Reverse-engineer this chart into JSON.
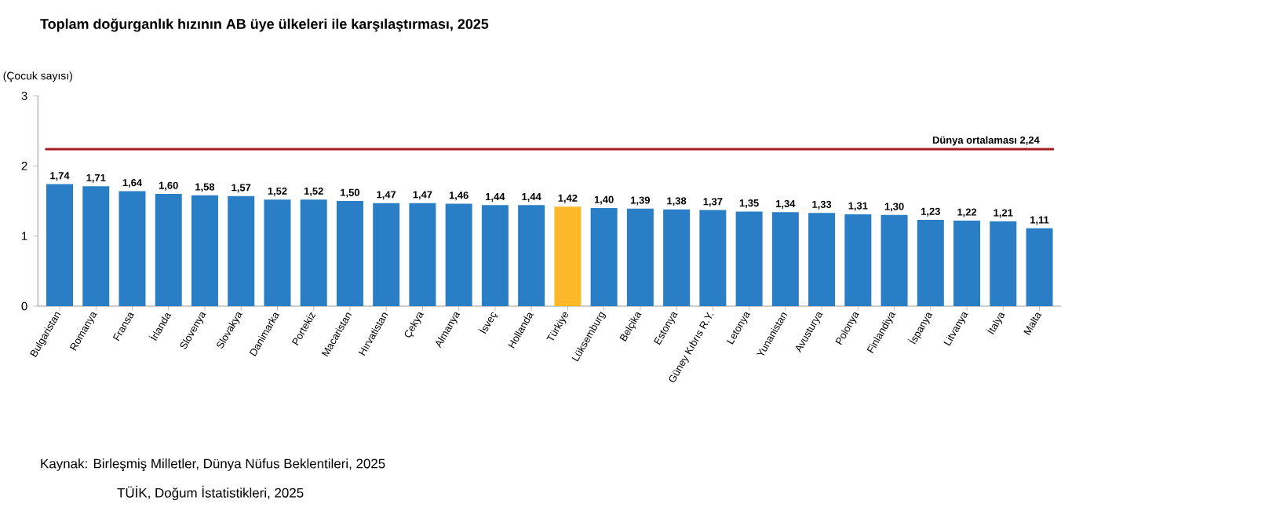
{
  "chart_data": {
    "type": "bar",
    "title": "Toplam doğurganlık hızının AB üye ülkeleri ile karşılaştırması, 2025",
    "ylabel": "(Çocuk sayısı)",
    "categories": [
      "Bulgaristan",
      "Romanya",
      "Fransa",
      "İrlanda",
      "Slovenya",
      "Slovakya",
      "Danimarka",
      "Portekiz",
      "Macaristan",
      "Hırvatistan",
      "Çekya",
      "Almanya",
      "İsveç",
      "Hollanda",
      "Türkiye",
      "Lüksemburg",
      "Belçika",
      "Estonya",
      "Güney Kıbrıs R.Y.",
      "Letonya",
      "Yunanistan",
      "Avusturya",
      "Polonya",
      "Finlandiya",
      "İspanya",
      "Litvanya",
      "İtalya",
      "Malta"
    ],
    "values": [
      1.74,
      1.71,
      1.64,
      1.6,
      1.58,
      1.57,
      1.52,
      1.52,
      1.5,
      1.47,
      1.47,
      1.46,
      1.44,
      1.44,
      1.42,
      1.4,
      1.39,
      1.38,
      1.37,
      1.35,
      1.34,
      1.33,
      1.31,
      1.3,
      1.23,
      1.22,
      1.21,
      1.11
    ],
    "value_labels": [
      "1,74",
      "1,71",
      "1,64",
      "1,60",
      "1,58",
      "1,57",
      "1,52",
      "1,52",
      "1,50",
      "1,47",
      "1,47",
      "1,46",
      "1,44",
      "1,44",
      "1,42",
      "1,40",
      "1,39",
      "1,38",
      "1,37",
      "1,35",
      "1,34",
      "1,33",
      "1,31",
      "1,30",
      "1,23",
      "1,22",
      "1,21",
      "1,11"
    ],
    "colors": [
      "#2a7ec5",
      "#2a7ec5",
      "#2a7ec5",
      "#2a7ec5",
      "#2a7ec5",
      "#2a7ec5",
      "#2a7ec5",
      "#2a7ec5",
      "#2a7ec5",
      "#2a7ec5",
      "#2a7ec5",
      "#2a7ec5",
      "#2a7ec5",
      "#2a7ec5",
      "#fbb829",
      "#2a7ec5",
      "#2a7ec5",
      "#2a7ec5",
      "#2a7ec5",
      "#2a7ec5",
      "#2a7ec5",
      "#2a7ec5",
      "#2a7ec5",
      "#2a7ec5",
      "#2a7ec5",
      "#2a7ec5",
      "#2a7ec5",
      "#2a7ec5"
    ],
    "ylim": [
      0,
      3
    ],
    "yticks": [
      0,
      1,
      2,
      3
    ],
    "ref_lines": [
      {
        "axis": "y",
        "value": 2.24,
        "label": "Dünya ortalaması   2,24",
        "color": "#a51c24"
      }
    ],
    "annotations": [
      "Kaynak: Birleşmiş Milletler, Dünya Nüfus Beklentileri, 2025",
      "TÜİK, Doğum İstatistikleri, 2025"
    ]
  }
}
